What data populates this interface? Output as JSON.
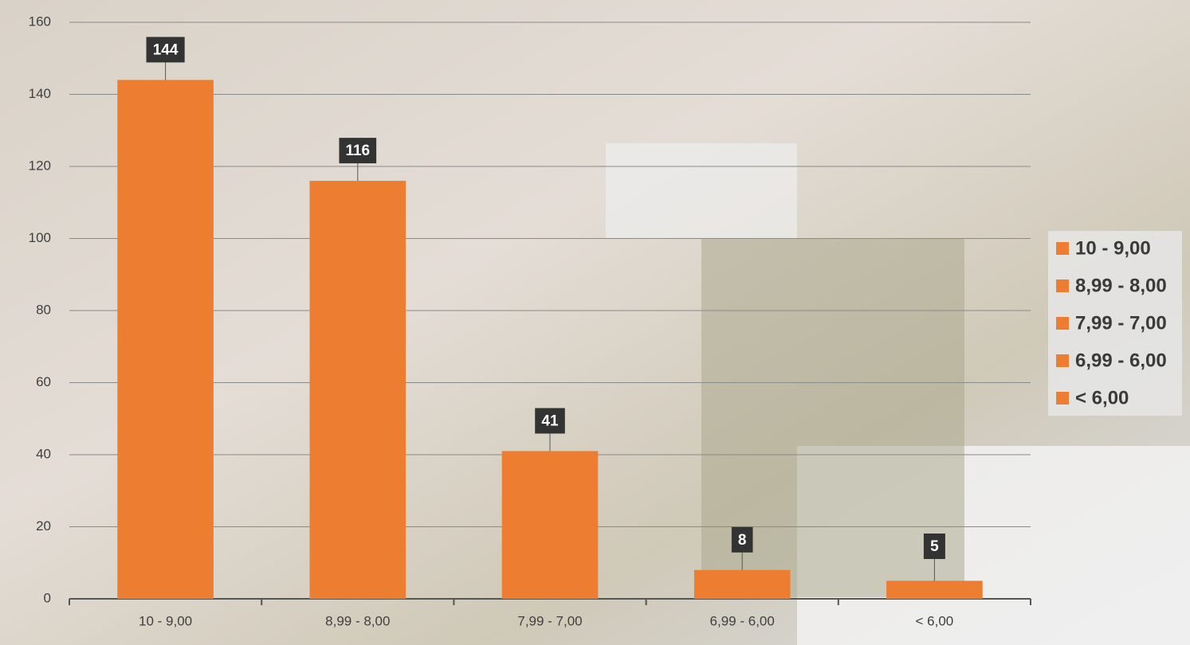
{
  "chart_data": {
    "type": "bar",
    "categories": [
      "10 - 9,00",
      "8,99 - 8,00",
      "7,99 - 7,00",
      "6,99 - 6,00",
      "< 6,00"
    ],
    "values": [
      144,
      116,
      41,
      8,
      5
    ],
    "color": "#ED7D31",
    "ylim": [
      0,
      160
    ],
    "yticks": [
      0,
      20,
      40,
      60,
      80,
      100,
      120,
      140,
      160
    ],
    "grid": true,
    "legend": "right"
  }
}
